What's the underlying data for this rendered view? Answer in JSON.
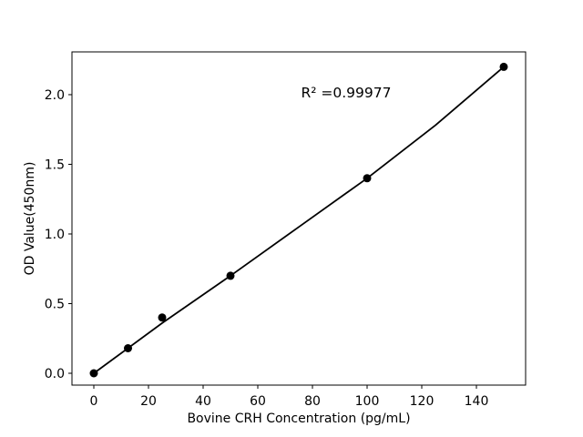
{
  "chart_data": {
    "type": "scatter",
    "title": "",
    "xlabel": "Bovine CRH Concentration (pg/mL)",
    "ylabel": "OD Value(450nm)",
    "annotation": {
      "text": "R² =0.99977",
      "x_data": 92,
      "y_data": 2.0
    },
    "xlim": [
      -8,
      158
    ],
    "ylim": [
      -0.085,
      2.307
    ],
    "x_ticks": [
      0,
      20,
      40,
      60,
      80,
      100,
      120,
      140
    ],
    "y_tick_values": [
      0.0,
      0.5,
      1.0,
      1.5,
      2.0
    ],
    "y_tick_labels": [
      "0.0",
      "0.5",
      "1.0",
      "1.5",
      "2.0"
    ],
    "grid": false,
    "legend": "none",
    "series": [
      {
        "name": "standard-points",
        "type": "scatter",
        "x": [
          0,
          12.5,
          25,
          50,
          100,
          150
        ],
        "y": [
          0.0,
          0.18,
          0.4,
          0.7,
          1.4,
          2.2
        ]
      },
      {
        "name": "fit-line",
        "type": "line",
        "x": [
          0,
          25,
          50,
          75,
          100,
          125,
          150
        ],
        "y": [
          0.0,
          0.36,
          0.7,
          1.05,
          1.4,
          1.78,
          2.2
        ]
      }
    ],
    "colors": {
      "marker": "#000000",
      "line": "#000000",
      "text": "#000000",
      "frame": "#000000",
      "background": "#ffffff"
    }
  }
}
